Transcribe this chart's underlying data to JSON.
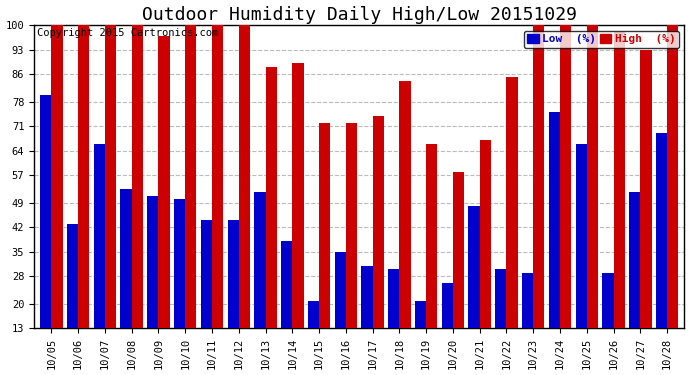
{
  "title": "Outdoor Humidity Daily High/Low 20151029",
  "copyright": "Copyright 2015 Cartronics.com",
  "legend_low": "Low  (%)",
  "legend_high": "High  (%)",
  "dates": [
    "10/05",
    "10/06",
    "10/07",
    "10/08",
    "10/09",
    "10/10",
    "10/11",
    "10/12",
    "10/13",
    "10/14",
    "10/15",
    "10/16",
    "10/17",
    "10/18",
    "10/19",
    "10/20",
    "10/21",
    "10/22",
    "10/23",
    "10/24",
    "10/25",
    "10/26",
    "10/27",
    "10/28"
  ],
  "high": [
    100,
    100,
    100,
    100,
    97,
    100,
    100,
    100,
    88,
    89,
    72,
    72,
    74,
    84,
    66,
    58,
    67,
    85,
    100,
    100,
    100,
    98,
    93,
    100
  ],
  "low": [
    80,
    43,
    66,
    53,
    51,
    50,
    44,
    44,
    52,
    38,
    21,
    35,
    31,
    30,
    21,
    26,
    48,
    30,
    29,
    75,
    66,
    29,
    52,
    69
  ],
  "ylim_min": 13,
  "ylim_max": 100,
  "yticks": [
    13,
    20,
    28,
    35,
    42,
    49,
    57,
    64,
    71,
    78,
    86,
    93,
    100
  ],
  "bar_width": 0.42,
  "low_color": "#0000cc",
  "high_color": "#cc0000",
  "bg_color": "#ffffff",
  "grid_color": "#bbbbbb",
  "title_fontsize": 13,
  "copyright_fontsize": 7.5,
  "tick_fontsize": 7.5,
  "legend_fontsize": 8
}
